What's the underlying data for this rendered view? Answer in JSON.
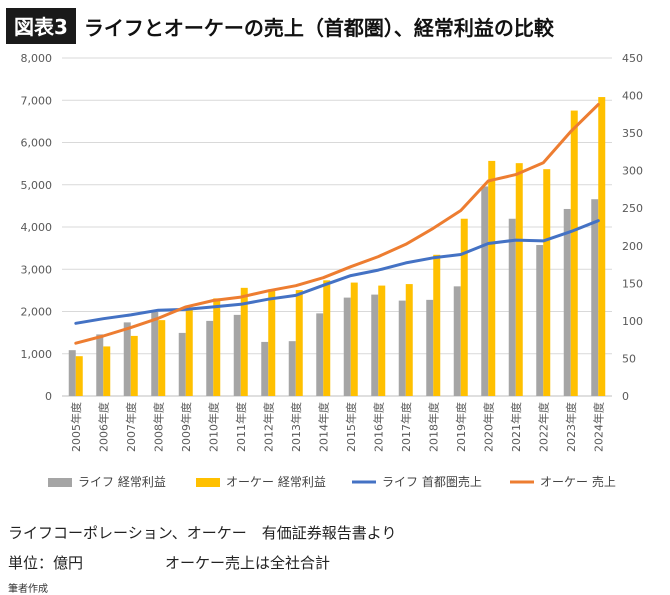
{
  "header": {
    "badge": "図表3",
    "title": "ライフとオーケーの売上（首都圏）、経常利益の比較"
  },
  "footer": {
    "source": "ライフコーポレーション、オーケー　有価証券報告書より",
    "unit": "単位：億円",
    "note": "オーケー売上は全社合計",
    "author": "筆者作成"
  },
  "colors": {
    "life_profit": "#a5a5a5",
    "ok_profit": "#ffc000",
    "life_sales": "#4472c4",
    "ok_sales": "#ed7d31",
    "grid": "#d9d9d9"
  },
  "chart_data": {
    "type": "bar+line",
    "categories": [
      "2005年度",
      "2006年度",
      "2007年度",
      "2008年度",
      "2009年度",
      "2010年度",
      "2011年度",
      "2012年度",
      "2013年度",
      "2014年度",
      "2015年度",
      "2016年度",
      "2017年度",
      "2018年度",
      "2019年度",
      "2020年度",
      "2021年度",
      "2022年度",
      "2023年度",
      "2024年度"
    ],
    "y_left": {
      "lim": [
        0,
        8000
      ],
      "ticks": [
        "0",
        "1,000",
        "2,000",
        "3,000",
        "4,000",
        "5,000",
        "6,000",
        "7,000",
        "8,000"
      ],
      "applies_to": "lines"
    },
    "y_right": {
      "lim": [
        0,
        450
      ],
      "ticks": [
        "0",
        "50",
        "100",
        "150",
        "200",
        "250",
        "300",
        "350",
        "400",
        "450"
      ],
      "applies_to": "bars"
    },
    "series": [
      {
        "name": "ライフ 経常利益",
        "kind": "bar",
        "axis": "right",
        "color": "#a5a5a5",
        "values": [
          61,
          82,
          98,
          112,
          84,
          100,
          108,
          72,
          73,
          110,
          131,
          135,
          127,
          128,
          146,
          279,
          236,
          201,
          249,
          262
        ]
      },
      {
        "name": "オーケー 経常利益",
        "kind": "bar",
        "axis": "right",
        "color": "#ffc000",
        "values": [
          53,
          66,
          80,
          101,
          118,
          130,
          144,
          142,
          141,
          154,
          151,
          147,
          149,
          188,
          236,
          313,
          310,
          302,
          380,
          398
        ]
      },
      {
        "name": "ライフ 首都圏売上",
        "kind": "line",
        "axis": "left",
        "color": "#4472c4",
        "values": [
          1720,
          1830,
          1920,
          2030,
          2050,
          2110,
          2170,
          2290,
          2380,
          2620,
          2850,
          2980,
          3150,
          3270,
          3350,
          3610,
          3690,
          3670,
          3890,
          4150
        ]
      },
      {
        "name": "オーケー 売上",
        "kind": "line",
        "axis": "left",
        "color": "#ed7d31",
        "values": [
          1250,
          1420,
          1620,
          1840,
          2110,
          2260,
          2340,
          2490,
          2610,
          2800,
          3060,
          3300,
          3590,
          3970,
          4390,
          5090,
          5240,
          5520,
          6260,
          6900
        ]
      }
    ],
    "legend_position": "bottom",
    "grid": true
  }
}
